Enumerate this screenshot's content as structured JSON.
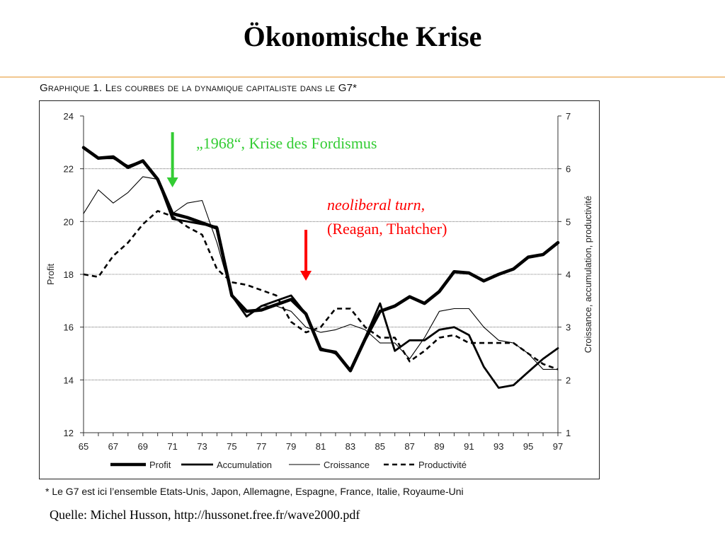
{
  "slide": {
    "title": "Ökonomische Krise",
    "chart_heading": "Graphique 1. Les courbes de la dynamique capitaliste dans le G7*",
    "footnote": "* Le G7 est ici l’ensemble Etats-Unis, Japon, Allemagne, Espagne, France, Italie, Royaume-Uni",
    "source": "Quelle: Michel Husson, http://hussonet.free.fr/wave2000.pdf"
  },
  "annotations": {
    "a1968": "„1968“, Krise des Fordismus",
    "neoliberal_line1": "neoliberal turn,",
    "neoliberal_line2": "(Reagan, Thatcher)",
    "arrow_1968_color": "#33cc33",
    "arrow_neoliberal_color": "#ff0000",
    "arrow_1968_year": 1971,
    "arrow_neoliberal_year": 1980
  },
  "chart_data": {
    "type": "line",
    "x": [
      1965,
      1966,
      1967,
      1968,
      1969,
      1970,
      1971,
      1972,
      1973,
      1974,
      1975,
      1976,
      1977,
      1978,
      1979,
      1980,
      1981,
      1982,
      1983,
      1984,
      1985,
      1986,
      1987,
      1988,
      1989,
      1990,
      1991,
      1992,
      1993,
      1994,
      1995,
      1996,
      1997
    ],
    "xticks": [
      "65",
      "67",
      "69",
      "71",
      "73",
      "75",
      "77",
      "79",
      "81",
      "83",
      "85",
      "87",
      "89",
      "91",
      "93",
      "95",
      "97"
    ],
    "ylabel": "Profit",
    "ylim": [
      12,
      24
    ],
    "yticks": [
      12,
      14,
      16,
      18,
      20,
      22,
      24
    ],
    "y2label": "Croissance, accumulation, productivité",
    "y2lim": [
      1,
      7
    ],
    "y2ticks": [
      1,
      2,
      3,
      4,
      5,
      6,
      7
    ],
    "grid": true,
    "legend_position": "bottom",
    "series": [
      {
        "name": "Profit",
        "axis": "left",
        "style": "thick",
        "values": [
          22.8,
          22.4,
          22.45,
          22.05,
          22.3,
          21.6,
          20.3,
          20.15,
          19.95,
          19.75,
          17.2,
          16.6,
          16.65,
          16.85,
          17.05,
          16.5,
          15.15,
          15.05,
          14.35,
          15.55,
          16.6,
          16.8,
          17.15,
          16.9,
          17.35,
          18.1,
          18.05,
          17.75,
          18.0,
          18.2,
          18.65,
          18.75,
          19.2
        ]
      },
      {
        "name": "Accumulation",
        "axis": "right",
        "style": "medium",
        "values": [
          6.4,
          6.2,
          6.2,
          6.05,
          6.15,
          5.8,
          5.05,
          5.0,
          4.95,
          4.9,
          3.6,
          3.2,
          3.4,
          3.5,
          3.6,
          3.25,
          2.6,
          2.5,
          2.2,
          2.8,
          3.45,
          2.55,
          2.75,
          2.75,
          2.95,
          3.0,
          2.85,
          2.25,
          1.85,
          1.9,
          2.15,
          2.4,
          2.6
        ]
      },
      {
        "name": "Croissance",
        "axis": "right",
        "style": "thin",
        "values": [
          5.15,
          5.6,
          5.35,
          5.55,
          5.85,
          5.8,
          5.15,
          5.35,
          5.4,
          4.6,
          3.6,
          3.2,
          3.4,
          3.4,
          3.3,
          3.0,
          2.9,
          2.95,
          3.05,
          2.95,
          2.7,
          2.7,
          2.4,
          2.8,
          3.3,
          3.35,
          3.35,
          3.0,
          2.75,
          2.7,
          2.5,
          2.2,
          2.2
        ]
      },
      {
        "name": "Productivité",
        "axis": "right",
        "style": "dashed",
        "values": [
          4.0,
          3.95,
          4.35,
          4.6,
          4.95,
          5.2,
          5.1,
          4.9,
          4.75,
          4.1,
          3.85,
          3.8,
          3.7,
          3.6,
          3.1,
          2.9,
          3.0,
          3.35,
          3.35,
          3.0,
          2.8,
          2.8,
          2.35,
          2.55,
          2.8,
          2.85,
          2.7,
          2.7,
          2.7,
          2.7,
          2.5,
          2.3,
          2.2
        ]
      }
    ]
  }
}
